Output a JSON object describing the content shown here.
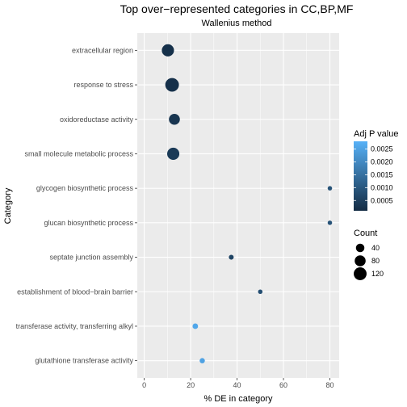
{
  "chart_data": {
    "type": "scatter",
    "title": "Top over−represented categories in CC,BP,MF",
    "subtitle": "Wallenius  method",
    "xlabel": "% DE in category",
    "ylabel": "Category",
    "xlim": [
      -3,
      84
    ],
    "x_ticks": [
      "0",
      "20",
      "40",
      "60",
      "80"
    ],
    "x_tick_values": [
      0,
      20,
      40,
      60,
      80
    ],
    "grid": true,
    "categories": [
      "extracellular region",
      "response to stress",
      "oxidoreductase activity",
      "small molecule metabolic process",
      "glycogen biosynthetic process",
      "glucan biosynthetic process",
      "septate junction assembly",
      "establishment of blood−brain barrier",
      "transferase activity, transferring alkyl",
      "glutathione transferase activity"
    ],
    "points": [
      {
        "category": "extracellular region",
        "x": 10.2,
        "count": 105,
        "adj_p": 0.0002
      },
      {
        "category": "response to stress",
        "x": 12.0,
        "count": 140,
        "adj_p": 0.0002
      },
      {
        "category": "oxidoreductase activity",
        "x": 13.0,
        "count": 80,
        "adj_p": 0.0003
      },
      {
        "category": "small molecule metabolic process",
        "x": 12.5,
        "count": 105,
        "adj_p": 0.0004
      },
      {
        "category": "glycogen biosynthetic process",
        "x": 80.0,
        "count": 4,
        "adj_p": 0.0009
      },
      {
        "category": "glucan biosynthetic process",
        "x": 80.0,
        "count": 4,
        "adj_p": 0.0009
      },
      {
        "category": "septate junction assembly",
        "x": 37.5,
        "count": 6,
        "adj_p": 0.0006
      },
      {
        "category": "establishment of blood−brain barrier",
        "x": 50.0,
        "count": 4,
        "adj_p": 0.0008
      },
      {
        "category": "transferase activity, transferring alkyl",
        "x": 22.0,
        "count": 10,
        "adj_p": 0.0026
      },
      {
        "category": "glutathione transferase activity",
        "x": 25.0,
        "count": 8,
        "adj_p": 0.0025
      }
    ],
    "color_legend": {
      "title": "Adj P value",
      "ticks": [
        "0.0025",
        "0.0020",
        "0.0015",
        "0.0010",
        "0.0005"
      ],
      "tick_values": [
        0.0025,
        0.002,
        0.0015,
        0.001,
        0.0005
      ],
      "range": [
        0.0001,
        0.0028
      ],
      "low_color": "#132B43",
      "high_color": "#56B1F7"
    },
    "size_legend": {
      "title": "Count",
      "labels": [
        "40",
        "80",
        "120"
      ],
      "values": [
        40,
        80,
        120
      ]
    },
    "panel_background": "#EBEBEB",
    "grid_color": "#FFFFFF"
  }
}
